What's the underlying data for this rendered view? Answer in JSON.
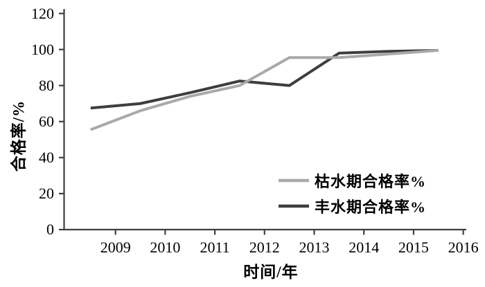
{
  "chart_data": {
    "type": "line",
    "title": "",
    "xlabel": "时间/年",
    "ylabel": "合格率/%",
    "categories": [
      "2009",
      "2010",
      "2011",
      "2012",
      "2013",
      "2014",
      "2015",
      "2016"
    ],
    "y_ticks": [
      0,
      20,
      40,
      60,
      80,
      100,
      120
    ],
    "ylim": [
      0,
      120
    ],
    "series": [
      {
        "name": "枯水期合格率%",
        "color": "#a9a9a9",
        "values": [
          55.5,
          66,
          74,
          80,
          95.5,
          95.5,
          97.5,
          99.5
        ]
      },
      {
        "name": "丰水期合格率%",
        "color": "#3e3e3e",
        "values": [
          67.5,
          70,
          76,
          82.5,
          80,
          98,
          99,
          99.5
        ]
      }
    ],
    "axis_color": "#3f3f3f",
    "grid": false,
    "legend_position": "inside-lower-right",
    "points_at": "category-midpoints",
    "tick_marks_at": "category-boundaries"
  }
}
